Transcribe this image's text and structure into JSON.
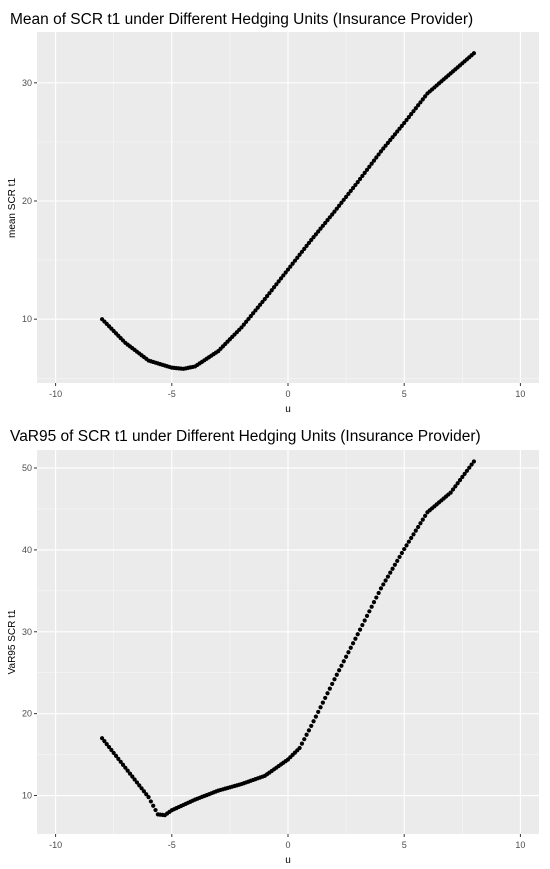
{
  "chart_data": [
    {
      "type": "scatter",
      "title": "Mean of SCR t1 under Different Hedging Units (Insurance Provider)",
      "xlabel": "u",
      "ylabel": "mean SCR t1",
      "xlim": [
        -10.8,
        10.8
      ],
      "ylim": [
        4.6,
        34.3
      ],
      "xticks": [
        -10,
        -5,
        0,
        5,
        10
      ],
      "yticks": [
        10,
        20,
        30
      ],
      "xtick_labels": [
        "-10",
        "-5",
        "0",
        "5",
        "10"
      ],
      "ytick_labels": [
        "10",
        "20",
        "30"
      ],
      "grid": true,
      "legend": "none",
      "point_color": "#000000",
      "series": [
        {
          "x": [
            -8,
            -7,
            -6,
            -5,
            -4.5,
            -4,
            -3,
            -2,
            -1,
            0,
            1,
            2,
            3,
            4,
            5,
            6,
            7,
            8
          ],
          "y": [
            10.0,
            8.0,
            6.5,
            5.9,
            5.8,
            6.0,
            7.3,
            9.3,
            11.7,
            14.2,
            16.7,
            19.1,
            21.6,
            24.2,
            26.6,
            29.1,
            30.8,
            32.5
          ]
        }
      ]
    },
    {
      "type": "scatter",
      "title": "VaR95 of SCR t1 under Different Hedging Units (Insurance Provider)",
      "xlabel": "u",
      "ylabel": "VaR95 SCR t1",
      "xlim": [
        -10.8,
        10.8
      ],
      "ylim": [
        5.3,
        52.2
      ],
      "xticks": [
        -10,
        -5,
        0,
        5,
        10
      ],
      "yticks": [
        10,
        20,
        30,
        40,
        50
      ],
      "xtick_labels": [
        "-10",
        "-5",
        "0",
        "5",
        "10"
      ],
      "ytick_labels": [
        "10",
        "20",
        "30",
        "40",
        "50"
      ],
      "grid": true,
      "legend": "none",
      "point_color": "#000000",
      "series": [
        {
          "x": [
            -8,
            -7,
            -6,
            -5.6,
            -5.3,
            -5,
            -4,
            -3,
            -2,
            -1,
            0,
            0.5,
            1,
            2,
            3,
            4,
            5,
            6,
            7,
            8
          ],
          "y": [
            17.0,
            13.4,
            9.8,
            7.7,
            7.6,
            8.2,
            9.5,
            10.6,
            11.4,
            12.4,
            14.4,
            15.8,
            18.5,
            24.2,
            29.7,
            35.3,
            40.1,
            44.6,
            47.0,
            50.8
          ]
        }
      ]
    }
  ]
}
